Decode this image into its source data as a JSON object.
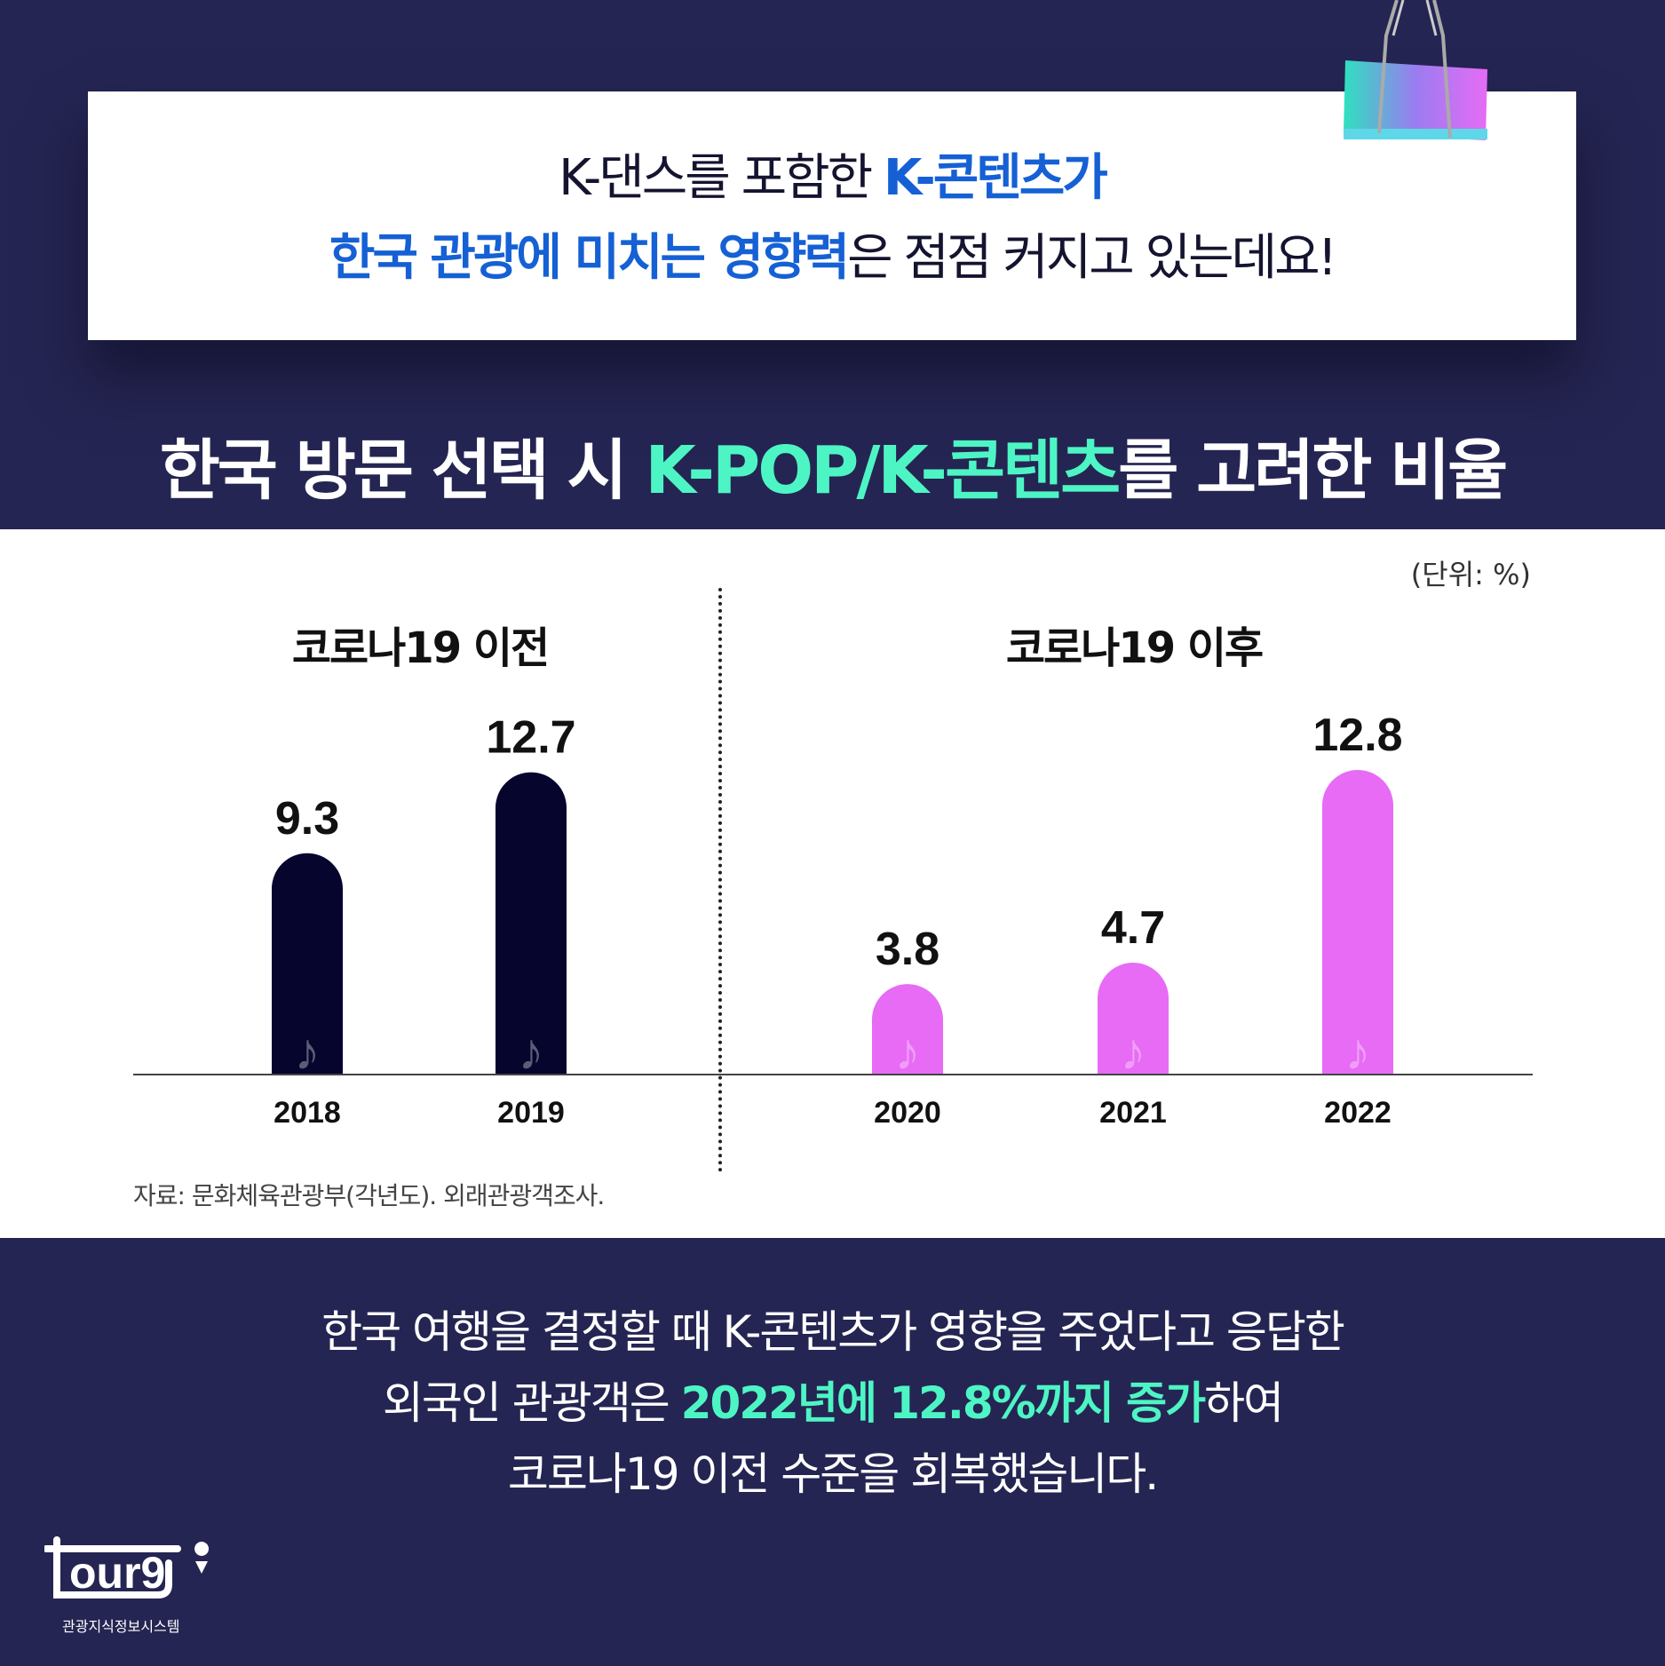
{
  "header": {
    "line1_plain": "K-댄스를 포함한 ",
    "line1_bold": "K-콘텐츠가",
    "line2_bold": "한국 관광에 미치는 영향력",
    "line2_plain": "은 점점 커지고 있는데요!"
  },
  "title": {
    "part1": "한국 방문 선택 시 ",
    "highlight": "K-POP/K-콘텐츠",
    "part2": "를 고려한 비율"
  },
  "colors": {
    "background": "#252553",
    "before_bar": "#05052e",
    "after_bar": "#e76bf5",
    "highlight_green": "#4ef5c4",
    "highlight_blue": "#1560d4"
  },
  "chart_data": {
    "type": "bar",
    "unit_label": "(단위: %)",
    "groups": [
      {
        "label": "코로나19 이전",
        "categories": [
          "2018",
          "2019"
        ],
        "values": [
          9.3,
          12.7
        ],
        "color": "#05052e"
      },
      {
        "label": "코로나19 이후",
        "categories": [
          "2020",
          "2021",
          "2022"
        ],
        "values": [
          3.8,
          4.7,
          12.8
        ],
        "color": "#e76bf5"
      }
    ],
    "categories": [
      "2018",
      "2019",
      "2020",
      "2021",
      "2022"
    ],
    "values": [
      9.3,
      12.7,
      3.8,
      4.7,
      12.8
    ],
    "bar_icon": "music-note-icon",
    "ylim": [
      0,
      13
    ]
  },
  "source": "자료: 문화체육관광부(각년도). 외래관광객조사.",
  "bottom": {
    "line1": "한국 여행을 결정할 때 K-콘텐츠가 영향을 주었다고 응답한",
    "line2_plain1": "외국인 관광객은 ",
    "line2_bold": "2022년에 12.8%까지 증가",
    "line2_plain2": "하여",
    "line3": "코로나19 이전 수준을 회복했습니다."
  },
  "logo": {
    "text": "tour9",
    "subtitle": "관광지식정보시스템"
  }
}
